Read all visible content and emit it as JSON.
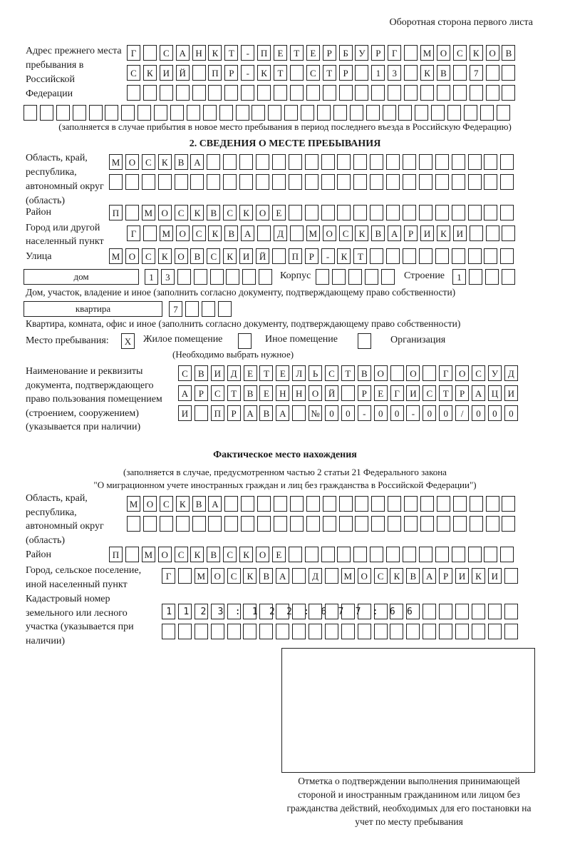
{
  "header": "Оборотная сторона первого листа",
  "prev_address": {
    "label": "Адрес прежнего места пребывания в Российской Федерации",
    "rows": [
      "Г САНКТ-ПЕТЕРБУРГ МОСКОВ",
      "СКИЙ ПР-КТ СТР 13 КВ 7",
      "",
      ""
    ],
    "note": "(заполняется в случае прибытия в новое место пребывания в период последнего въезда в Российскую Федерацию)"
  },
  "section2": {
    "title": "2. СВЕДЕНИЯ О МЕСТЕ ПРЕБЫВАНИЯ",
    "region_label": "Область, край, республика, автономный округ (область)",
    "region_rows": [
      "МОСКВА",
      ""
    ],
    "district_label": "Район",
    "district": "П МОСКВСКОЕ",
    "city_label": "Город или другой населенный пункт",
    "city": "Г МОСКВА Д МОСКВАРИКИ",
    "street_label": "Улица",
    "street": "МОСКОВСКИЙ ПР-КТ",
    "house_type": "дом",
    "house": "13",
    "korpus_label": "Корпус",
    "korpus": "",
    "building_label": "Строение",
    "building": "1",
    "house_note": "Дом, участок, владение и иное (заполнить согласно документу, подтверждающему право собственности)",
    "flat_type": "квартира",
    "flat": "7",
    "flat_note": "Квартира, комната, офис и иное (заполнить согласно документу, подтверждающему право собственности)",
    "stay_label": "Место пребывания:",
    "stay_options": [
      {
        "label": "Жилое помещение",
        "mark": "X"
      },
      {
        "label": "Иное помещение",
        "mark": ""
      },
      {
        "label": "Организация",
        "mark": ""
      }
    ],
    "stay_note": "(Необходимо выбрать нужное)",
    "doc_label": "Наименование и реквизиты документа, подтверждающего право пользования помещением (строением, сооружением) (указывается при наличии)",
    "doc_rows": [
      "СВИДЕТЕЛЬСТВО О ГОСУД",
      "АРСТВЕННОЙ РЕГИСТРАЦИ",
      "И ПРАВА №00-00-00/000"
    ]
  },
  "actual": {
    "title": "Фактическое место нахождения",
    "note1": "(заполняется в случае, предусмотренном частью 2 статьи 21 Федерального закона",
    "note2": "\"О миграционном учете иностранных граждан и лиц без гражданства в Российской Федерации\")",
    "region_label": "Область, край, республика, автономный округ (область)",
    "region_rows": [
      "МОСКВА",
      ""
    ],
    "district_label": "Район",
    "district": "П МОСКВСКОЕ",
    "city_label": "Город, сельское поселение, иной населенный пункт",
    "city": "Г МОСКВА Д МОСКВАРИКИ",
    "cadastral_label": "Кадастровый номер земельного или лесного участка (указывается при наличии)",
    "cadastral_rows": [
      "1123:122:677:66",
      ""
    ]
  },
  "stamp_caption": "Отметка о подтверждении выполнения принимающей стороной и иностранным гражданином или лицом без гражданства действий, необходимых для его постановки на учет по месту пребывания"
}
